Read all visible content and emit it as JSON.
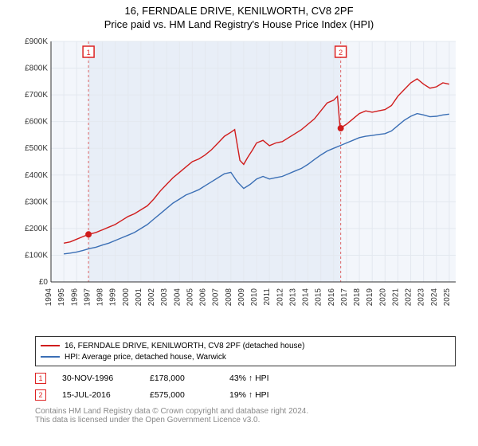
{
  "title_line1": "16, FERNDALE DRIVE, KENILWORTH, CV8 2PF",
  "title_line2": "Price paid vs. HM Land Registry's House Price Index (HPI)",
  "chart": {
    "background_color": "#ffffff",
    "plot_background": "#f3f6fb",
    "grid_color": "#e3e8ef",
    "axis_color": "#333333",
    "tick_font_size": 10,
    "tick_color": "#333333",
    "x_years": [
      1994,
      1995,
      1996,
      1997,
      1998,
      1999,
      2000,
      2001,
      2002,
      2003,
      2004,
      2005,
      2006,
      2007,
      2008,
      2009,
      2010,
      2011,
      2012,
      2013,
      2014,
      2015,
      2016,
      2017,
      2018,
      2019,
      2020,
      2021,
      2022,
      2023,
      2024,
      2025
    ],
    "x_range": [
      1994,
      2025.5
    ],
    "y_ticks": [
      0,
      100000,
      200000,
      300000,
      400000,
      500000,
      600000,
      700000,
      800000,
      900000
    ],
    "y_labels": [
      "£0",
      "£100K",
      "£200K",
      "£300K",
      "£400K",
      "£500K",
      "£600K",
      "£700K",
      "£800K",
      "£900K"
    ],
    "y_range": [
      0,
      900000
    ],
    "shade_start": 1996.9,
    "shade_end": 2016.55,
    "shade_color": "#e8eef7",
    "series": [
      {
        "name": "property",
        "color": "#d01c1c",
        "width": 1.4,
        "points": [
          [
            1995.0,
            145000
          ],
          [
            1995.5,
            150000
          ],
          [
            1996.0,
            160000
          ],
          [
            1996.5,
            170000
          ],
          [
            1996.92,
            178000
          ],
          [
            1997.5,
            185000
          ],
          [
            1998.0,
            195000
          ],
          [
            1998.5,
            205000
          ],
          [
            1999.0,
            215000
          ],
          [
            1999.5,
            230000
          ],
          [
            2000.0,
            245000
          ],
          [
            2000.5,
            255000
          ],
          [
            2001.0,
            270000
          ],
          [
            2001.5,
            285000
          ],
          [
            2002.0,
            310000
          ],
          [
            2002.5,
            340000
          ],
          [
            2003.0,
            365000
          ],
          [
            2003.5,
            390000
          ],
          [
            2004.0,
            410000
          ],
          [
            2004.5,
            430000
          ],
          [
            2005.0,
            450000
          ],
          [
            2005.5,
            460000
          ],
          [
            2006.0,
            475000
          ],
          [
            2006.5,
            495000
          ],
          [
            2007.0,
            520000
          ],
          [
            2007.5,
            545000
          ],
          [
            2008.0,
            560000
          ],
          [
            2008.3,
            570000
          ],
          [
            2008.7,
            455000
          ],
          [
            2009.0,
            440000
          ],
          [
            2009.3,
            465000
          ],
          [
            2009.7,
            495000
          ],
          [
            2010.0,
            520000
          ],
          [
            2010.5,
            530000
          ],
          [
            2011.0,
            510000
          ],
          [
            2011.5,
            520000
          ],
          [
            2012.0,
            525000
          ],
          [
            2012.5,
            540000
          ],
          [
            2013.0,
            555000
          ],
          [
            2013.5,
            570000
          ],
          [
            2014.0,
            590000
          ],
          [
            2014.5,
            610000
          ],
          [
            2015.0,
            640000
          ],
          [
            2015.5,
            670000
          ],
          [
            2016.0,
            680000
          ],
          [
            2016.3,
            695000
          ],
          [
            2016.5,
            575000
          ],
          [
            2017.0,
            590000
          ],
          [
            2017.5,
            610000
          ],
          [
            2018.0,
            630000
          ],
          [
            2018.5,
            640000
          ],
          [
            2019.0,
            635000
          ],
          [
            2019.5,
            640000
          ],
          [
            2020.0,
            645000
          ],
          [
            2020.5,
            660000
          ],
          [
            2021.0,
            695000
          ],
          [
            2021.5,
            720000
          ],
          [
            2022.0,
            745000
          ],
          [
            2022.5,
            760000
          ],
          [
            2023.0,
            740000
          ],
          [
            2023.5,
            725000
          ],
          [
            2024.0,
            730000
          ],
          [
            2024.5,
            745000
          ],
          [
            2025.0,
            740000
          ]
        ]
      },
      {
        "name": "hpi",
        "color": "#3b6fb5",
        "width": 1.4,
        "points": [
          [
            1995.0,
            105000
          ],
          [
            1995.5,
            108000
          ],
          [
            1996.0,
            112000
          ],
          [
            1996.5,
            118000
          ],
          [
            1997.0,
            125000
          ],
          [
            1997.5,
            130000
          ],
          [
            1998.0,
            138000
          ],
          [
            1998.5,
            145000
          ],
          [
            1999.0,
            155000
          ],
          [
            1999.5,
            165000
          ],
          [
            2000.0,
            175000
          ],
          [
            2000.5,
            185000
          ],
          [
            2001.0,
            200000
          ],
          [
            2001.5,
            215000
          ],
          [
            2002.0,
            235000
          ],
          [
            2002.5,
            255000
          ],
          [
            2003.0,
            275000
          ],
          [
            2003.5,
            295000
          ],
          [
            2004.0,
            310000
          ],
          [
            2004.5,
            325000
          ],
          [
            2005.0,
            335000
          ],
          [
            2005.5,
            345000
          ],
          [
            2006.0,
            360000
          ],
          [
            2006.5,
            375000
          ],
          [
            2007.0,
            390000
          ],
          [
            2007.5,
            405000
          ],
          [
            2008.0,
            410000
          ],
          [
            2008.5,
            375000
          ],
          [
            2009.0,
            350000
          ],
          [
            2009.5,
            365000
          ],
          [
            2010.0,
            385000
          ],
          [
            2010.5,
            395000
          ],
          [
            2011.0,
            385000
          ],
          [
            2011.5,
            390000
          ],
          [
            2012.0,
            395000
          ],
          [
            2012.5,
            405000
          ],
          [
            2013.0,
            415000
          ],
          [
            2013.5,
            425000
          ],
          [
            2014.0,
            440000
          ],
          [
            2014.5,
            458000
          ],
          [
            2015.0,
            475000
          ],
          [
            2015.5,
            490000
          ],
          [
            2016.0,
            500000
          ],
          [
            2016.5,
            510000
          ],
          [
            2017.0,
            520000
          ],
          [
            2017.5,
            530000
          ],
          [
            2018.0,
            540000
          ],
          [
            2018.5,
            545000
          ],
          [
            2019.0,
            548000
          ],
          [
            2019.5,
            552000
          ],
          [
            2020.0,
            555000
          ],
          [
            2020.5,
            565000
          ],
          [
            2021.0,
            585000
          ],
          [
            2021.5,
            605000
          ],
          [
            2022.0,
            620000
          ],
          [
            2022.5,
            630000
          ],
          [
            2023.0,
            625000
          ],
          [
            2023.5,
            618000
          ],
          [
            2024.0,
            620000
          ],
          [
            2024.5,
            625000
          ],
          [
            2025.0,
            628000
          ]
        ]
      }
    ],
    "markers": [
      {
        "label": "1",
        "x": 1996.92,
        "y": 178000,
        "line_color": "#d66",
        "dash": "3,3",
        "box_border": "#d22",
        "box_text": "#d22"
      },
      {
        "label": "2",
        "x": 2016.55,
        "y": 575000,
        "line_color": "#d66",
        "dash": "3,3",
        "box_border": "#d22",
        "box_text": "#d22"
      }
    ]
  },
  "legend": {
    "items": [
      {
        "color": "#d01c1c",
        "text": "16, FERNDALE DRIVE, KENILWORTH, CV8 2PF (detached house)"
      },
      {
        "color": "#3b6fb5",
        "text": "HPI: Average price, detached house, Warwick"
      }
    ]
  },
  "data_rows": [
    {
      "marker": "1",
      "date": "30-NOV-1996",
      "price": "£178,000",
      "delta": "43% ↑ HPI"
    },
    {
      "marker": "2",
      "date": "15-JUL-2016",
      "price": "£575,000",
      "delta": "19% ↑ HPI"
    }
  ],
  "attribution_line1": "Contains HM Land Registry data © Crown copyright and database right 2024.",
  "attribution_line2": "This data is licensed under the Open Government Licence v3.0."
}
